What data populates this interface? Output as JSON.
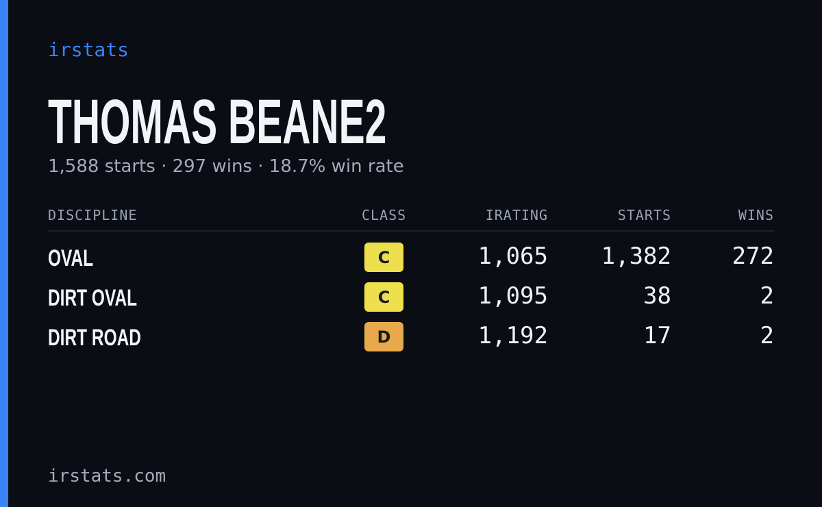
{
  "brand": "irstats",
  "driver": {
    "name": "THOMAS BEANE2",
    "summary": "1,588 starts · 297 wins · 18.7% win rate"
  },
  "table": {
    "headers": [
      "DISCIPLINE",
      "CLASS",
      "IRATING",
      "STARTS",
      "WINS"
    ],
    "rows": [
      {
        "discipline": "OVAL",
        "class": "C",
        "class_color": "#ede04c",
        "irating": "1,065",
        "starts": "1,382",
        "wins": "272"
      },
      {
        "discipline": "DIRT OVAL",
        "class": "C",
        "class_color": "#ede04c",
        "irating": "1,095",
        "starts": "38",
        "wins": "2"
      },
      {
        "discipline": "DIRT ROAD",
        "class": "D",
        "class_color": "#e8a94c",
        "irating": "1,192",
        "starts": "17",
        "wins": "2"
      }
    ]
  },
  "footer": "irstats.com"
}
